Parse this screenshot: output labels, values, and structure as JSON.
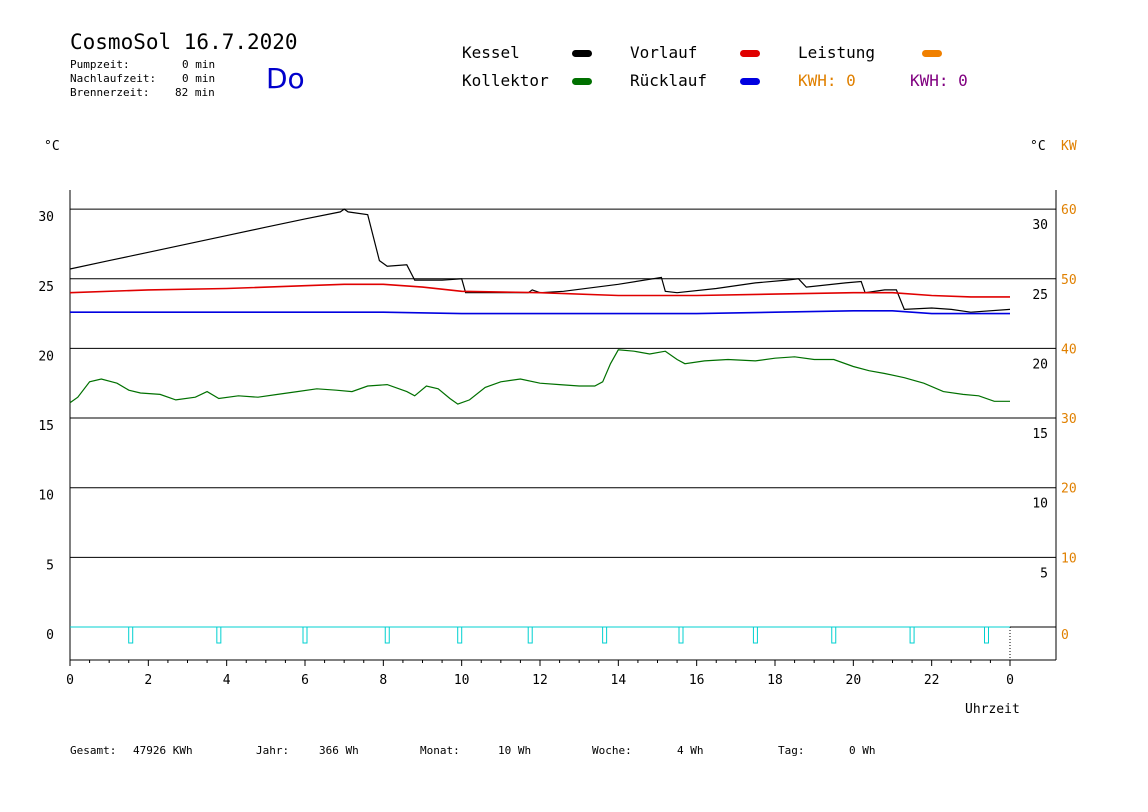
{
  "header": {
    "title": "CosmoSol 16.7.2020",
    "day": "Do",
    "stats": [
      {
        "label": "Pumpzeit:",
        "value": "0 min"
      },
      {
        "label": "Nachlaufzeit:",
        "value": "0 min"
      },
      {
        "label": "Brennerzeit:",
        "value": "82 min"
      }
    ]
  },
  "legend": {
    "kessel": "Kessel",
    "kollektor": "Kollektor",
    "vorlauf": "Vorlauf",
    "ruecklauf": "Rücklauf",
    "leistung": "Leistung",
    "kwh1": "KWH: 0",
    "kwh2": "KWH: 0"
  },
  "colors": {
    "kessel": "#000000",
    "kollektor": "#007000",
    "vorlauf": "#e00000",
    "ruecklauf": "#0000e0",
    "leistung": "#f08000",
    "kwh2": "#800080",
    "pump": "#00d0d0",
    "kw_axis": "#e08000"
  },
  "footer": {
    "gesamt_label": "Gesamt:",
    "gesamt_value": "47926 KWh",
    "jahr_label": "Jahr:",
    "jahr_value": "366 Wh",
    "monat_label": "Monat:",
    "monat_value": "10 Wh",
    "woche_label": "Woche:",
    "woche_value": "4 Wh",
    "tag_label": "Tag:",
    "tag_value": "0 Wh"
  },
  "chart_data": {
    "type": "line",
    "xlabel": "Uhrzeit",
    "ylabel_left": "°C",
    "ylabel_right_c": "°C",
    "ylabel_right_kw": "KW",
    "xlim": [
      0,
      24
    ],
    "ylim": [
      0,
      30
    ],
    "kwlim": [
      0,
      60
    ],
    "grid": true,
    "x_ticks": [
      "0",
      "2",
      "4",
      "6",
      "8",
      "10",
      "12",
      "14",
      "16",
      "18",
      "20",
      "22",
      "0"
    ],
    "y_ticks": [
      "0",
      "5",
      "10",
      "15",
      "20",
      "25",
      "30"
    ],
    "kw_ticks": [
      "0",
      "10",
      "20",
      "30",
      "40",
      "50",
      "60"
    ],
    "series": [
      {
        "name": "Kessel",
        "key": "kessel",
        "points": [
          [
            0,
            25.7
          ],
          [
            1,
            26.3
          ],
          [
            2,
            26.9
          ],
          [
            3,
            27.5
          ],
          [
            4,
            28.1
          ],
          [
            5,
            28.7
          ],
          [
            6,
            29.3
          ],
          [
            6.9,
            29.8
          ],
          [
            7,
            30.0
          ],
          [
            7.1,
            29.8
          ],
          [
            7.6,
            29.6
          ],
          [
            7.9,
            26.3
          ],
          [
            8.1,
            25.9
          ],
          [
            8.6,
            26.0
          ],
          [
            8.8,
            24.9
          ],
          [
            9.5,
            24.9
          ],
          [
            10.0,
            25.0
          ],
          [
            10.1,
            24.0
          ],
          [
            11.7,
            24.0
          ],
          [
            11.8,
            24.2
          ],
          [
            12.0,
            24.0
          ],
          [
            12.6,
            24.1
          ],
          [
            14.0,
            24.6
          ],
          [
            15.1,
            25.1
          ],
          [
            15.2,
            24.1
          ],
          [
            15.5,
            24.0
          ],
          [
            16.5,
            24.3
          ],
          [
            17.5,
            24.7
          ],
          [
            18.3,
            24.9
          ],
          [
            18.6,
            25.0
          ],
          [
            18.8,
            24.4
          ],
          [
            19.8,
            24.7
          ],
          [
            20.2,
            24.8
          ],
          [
            20.3,
            24.0
          ],
          [
            20.8,
            24.2
          ],
          [
            21.1,
            24.2
          ],
          [
            21.3,
            22.8
          ],
          [
            22.0,
            22.9
          ],
          [
            22.5,
            22.8
          ],
          [
            23.0,
            22.6
          ],
          [
            24.0,
            22.8
          ]
        ]
      },
      {
        "name": "Vorlauf",
        "key": "vorlauf",
        "points": [
          [
            0,
            24.0
          ],
          [
            2,
            24.2
          ],
          [
            4,
            24.3
          ],
          [
            6,
            24.5
          ],
          [
            7,
            24.6
          ],
          [
            8,
            24.6
          ],
          [
            9,
            24.4
          ],
          [
            10,
            24.1
          ],
          [
            12,
            24.0
          ],
          [
            14,
            23.8
          ],
          [
            16,
            23.8
          ],
          [
            18,
            23.9
          ],
          [
            20,
            24.0
          ],
          [
            21,
            24.0
          ],
          [
            22,
            23.8
          ],
          [
            23,
            23.7
          ],
          [
            24,
            23.7
          ]
        ]
      },
      {
        "name": "Rücklauf",
        "key": "ruecklauf",
        "points": [
          [
            0,
            22.6
          ],
          [
            4,
            22.6
          ],
          [
            8,
            22.6
          ],
          [
            10,
            22.5
          ],
          [
            12,
            22.5
          ],
          [
            14,
            22.5
          ],
          [
            16,
            22.5
          ],
          [
            18,
            22.6
          ],
          [
            20,
            22.7
          ],
          [
            21,
            22.7
          ],
          [
            22,
            22.5
          ],
          [
            24,
            22.5
          ]
        ]
      },
      {
        "name": "Kollektor",
        "key": "kollektor",
        "points": [
          [
            0,
            16.1
          ],
          [
            0.2,
            16.5
          ],
          [
            0.5,
            17.6
          ],
          [
            0.8,
            17.8
          ],
          [
            1.2,
            17.5
          ],
          [
            1.5,
            17.0
          ],
          [
            1.8,
            16.8
          ],
          [
            2.3,
            16.7
          ],
          [
            2.7,
            16.3
          ],
          [
            3.2,
            16.5
          ],
          [
            3.5,
            16.9
          ],
          [
            3.8,
            16.4
          ],
          [
            4.3,
            16.6
          ],
          [
            4.8,
            16.5
          ],
          [
            5.3,
            16.7
          ],
          [
            5.8,
            16.9
          ],
          [
            6.3,
            17.1
          ],
          [
            6.8,
            17.0
          ],
          [
            7.2,
            16.9
          ],
          [
            7.6,
            17.3
          ],
          [
            8.1,
            17.4
          ],
          [
            8.6,
            16.9
          ],
          [
            8.8,
            16.6
          ],
          [
            9.1,
            17.3
          ],
          [
            9.4,
            17.1
          ],
          [
            9.7,
            16.4
          ],
          [
            9.9,
            16.0
          ],
          [
            10.2,
            16.3
          ],
          [
            10.6,
            17.2
          ],
          [
            11.0,
            17.6
          ],
          [
            11.5,
            17.8
          ],
          [
            12.0,
            17.5
          ],
          [
            12.5,
            17.4
          ],
          [
            13.0,
            17.3
          ],
          [
            13.4,
            17.3
          ],
          [
            13.6,
            17.6
          ],
          [
            13.8,
            18.9
          ],
          [
            14.0,
            19.9
          ],
          [
            14.4,
            19.8
          ],
          [
            14.8,
            19.6
          ],
          [
            15.2,
            19.8
          ],
          [
            15.5,
            19.2
          ],
          [
            15.7,
            18.9
          ],
          [
            16.2,
            19.1
          ],
          [
            16.8,
            19.2
          ],
          [
            17.5,
            19.1
          ],
          [
            18.0,
            19.3
          ],
          [
            18.5,
            19.4
          ],
          [
            19.0,
            19.2
          ],
          [
            19.5,
            19.2
          ],
          [
            20.0,
            18.7
          ],
          [
            20.4,
            18.4
          ],
          [
            20.8,
            18.2
          ],
          [
            21.3,
            17.9
          ],
          [
            21.8,
            17.5
          ],
          [
            22.3,
            16.9
          ],
          [
            22.8,
            16.7
          ],
          [
            23.2,
            16.6
          ],
          [
            23.6,
            16.2
          ],
          [
            24.0,
            16.2
          ]
        ]
      }
    ],
    "pump_pulses": [
      1.55,
      3.8,
      6.0,
      8.1,
      9.95,
      11.75,
      13.65,
      15.6,
      17.5,
      19.5,
      21.5,
      23.4
    ]
  }
}
